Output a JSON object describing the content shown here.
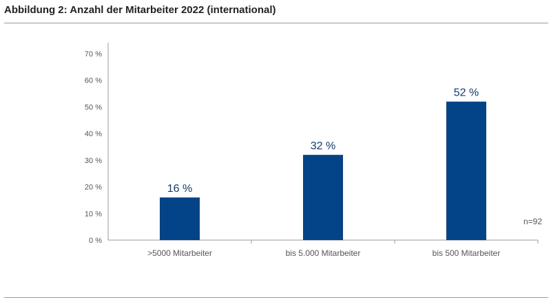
{
  "figure": {
    "title": "Abbildung 2: Anzahl der Mitarbeiter 2022 (international)",
    "note": "n=92"
  },
  "colors": {
    "bar": "#034388",
    "label": "#0b3c7c",
    "axis": "#9a9a9a"
  },
  "chart_data": {
    "type": "bar",
    "categories": [
      ">5000 Mitarbeiter",
      "bis 5.000 Mitarbeiter",
      "bis 500 Mitarbeiter"
    ],
    "values": [
      16,
      32,
      52
    ],
    "data_labels": [
      "16 %",
      "32 %",
      "52 %"
    ],
    "ylim": [
      0,
      70
    ],
    "yticks": [
      0,
      10,
      20,
      30,
      40,
      50,
      60,
      70
    ],
    "ytick_labels": [
      "0 %",
      "10 %",
      "20 %",
      "30 %",
      "40 %",
      "50 %",
      "60 %",
      "70 %"
    ],
    "grid": false
  }
}
